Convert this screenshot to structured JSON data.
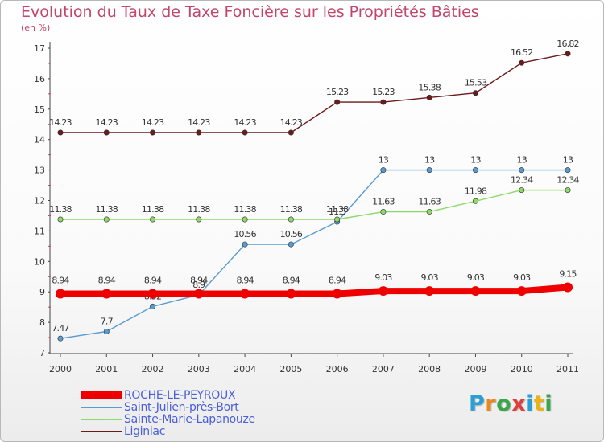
{
  "title": "Evolution du Taux de Taxe Foncière sur les Propriétés Bâties",
  "unit_label": "(en %)",
  "logo": {
    "text": "Proxiti",
    "letters": [
      {
        "ch": "P",
        "color": "#2a9fd6"
      },
      {
        "ch": "r",
        "color": "#e8891a"
      },
      {
        "ch": "o",
        "color": "#3aa64a"
      },
      {
        "ch": "x",
        "color": "#e23d3d"
      },
      {
        "ch": "i",
        "color": "#2a9fd6"
      },
      {
        "ch": "t",
        "color": "#e8b21a"
      },
      {
        "ch": "i",
        "color": "#3aa64a"
      }
    ]
  },
  "chart_data": {
    "type": "line",
    "title": "Evolution du Taux de Taxe Foncière sur les Propriétés Bâties",
    "ylabel": "(en %)",
    "xlabel": "",
    "ylim": [
      7,
      17
    ],
    "yticks": [
      7,
      8,
      9,
      10,
      11,
      12,
      13,
      14,
      15,
      16,
      17
    ],
    "grid": false,
    "categories": [
      "2000",
      "2001",
      "2002",
      "2003",
      "2004",
      "2005",
      "2006",
      "2007",
      "2008",
      "2009",
      "2010",
      "2011"
    ],
    "series": [
      {
        "name": "Liginiac",
        "color": "#6b1b1b",
        "width": "thin",
        "values": [
          14.23,
          14.23,
          14.23,
          14.23,
          14.23,
          14.23,
          15.23,
          15.23,
          15.38,
          15.53,
          16.52,
          16.82
        ],
        "labels": [
          "14.23",
          "14.23",
          "14.23",
          "14.23",
          "14.23",
          "14.23",
          "15.23",
          "15.23",
          "15.38",
          "15.53",
          "16.52",
          "16.82"
        ]
      },
      {
        "name": "Saint-Julien-près-Bort",
        "color": "#5a9bd0",
        "width": "thin",
        "values": [
          7.47,
          7.7,
          8.52,
          8.9,
          10.56,
          10.56,
          11.3,
          13,
          13,
          13,
          13,
          13
        ],
        "labels": [
          "7.47",
          "7.7",
          "8.52",
          "8.9",
          "10.56",
          "10.56",
          "11.3",
          "13",
          "13",
          "13",
          "13",
          "13"
        ]
      },
      {
        "name": "Sainte-Marie-Lapanouze",
        "color": "#8fd86a",
        "width": "thin",
        "values": [
          11.38,
          11.38,
          11.38,
          11.38,
          11.38,
          11.38,
          11.38,
          11.63,
          11.63,
          11.98,
          12.34,
          12.34
        ],
        "labels": [
          "11.38",
          "11.38",
          "11.38",
          "11.38",
          "11.38",
          "11.38",
          "11.38",
          "11.63",
          "11.63",
          "11.98",
          "12.34",
          "12.34"
        ]
      },
      {
        "name": "ROCHE-LE-PEYROUX",
        "color": "#ee0000",
        "width": "thick",
        "values": [
          8.94,
          8.94,
          8.94,
          8.94,
          8.94,
          8.94,
          8.94,
          9.03,
          9.03,
          9.03,
          9.03,
          9.15
        ],
        "labels": [
          "8.94",
          "8.94",
          "8.94",
          "8.94",
          "8.94",
          "8.94",
          "8.94",
          "9.03",
          "9.03",
          "9.03",
          "9.03",
          "9.15"
        ]
      }
    ],
    "legend": [
      {
        "name": "ROCHE-LE-PEYROUX",
        "color": "#ee0000",
        "width": "thick"
      },
      {
        "name": "Saint-Julien-près-Bort",
        "color": "#5a9bd0",
        "width": "thin"
      },
      {
        "name": "Sainte-Marie-Lapanouze",
        "color": "#8fd86a",
        "width": "thin"
      },
      {
        "name": "Liginiac",
        "color": "#6b1b1b",
        "width": "thin"
      }
    ],
    "legend_position": "bottom-left"
  }
}
